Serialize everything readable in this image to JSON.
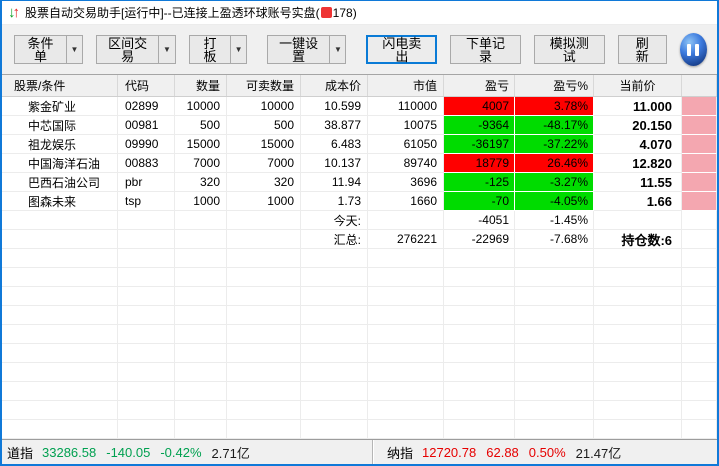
{
  "colors": {
    "accent": "#1079d8",
    "profit-bg": "#ff0000",
    "loss-bg": "#00dc00",
    "masked-bg": "#f4a7b0",
    "up-text": "#e60000",
    "down-text": "#00a050"
  },
  "window": {
    "title_prefix": "股票自动交易助手[运行中]--已连接上盈透环球账号实盘(",
    "title_suffix": "178)"
  },
  "toolbar": {
    "dropdowns": [
      {
        "label": "条件单"
      },
      {
        "label": "区间交易"
      },
      {
        "label": "打板"
      },
      {
        "label": "一键设置"
      }
    ],
    "flash_sell": "闪电卖出",
    "order_record": "下单记录",
    "sim_test": "模拟测试",
    "refresh": "刷新",
    "pause_icon": "pause-icon"
  },
  "table": {
    "columns": [
      "股票/条件",
      "代码",
      "数量",
      "可卖数量",
      "成本价",
      "市值",
      "盈亏",
      "盈亏%",
      "当前价",
      ""
    ],
    "column_keys": [
      "name",
      "code",
      "qty",
      "sellable-qty",
      "cost-price",
      "market-value",
      "pl",
      "pl-pct",
      "current-price"
    ],
    "rows": [
      {
        "cells": [
          "紫金矿业",
          "02899",
          "10000",
          "10000",
          "10.599",
          "110000",
          "4007",
          "3.78%",
          "11.000"
        ]
      },
      {
        "cells": [
          "中芯国际",
          "00981",
          "500",
          "500",
          "38.877",
          "10075",
          "-9364",
          "-48.17%",
          "20.150"
        ]
      },
      {
        "cells": [
          "祖龙娱乐",
          "09990",
          "15000",
          "15000",
          "6.483",
          "61050",
          "-36197",
          "-37.22%",
          "4.070"
        ]
      },
      {
        "cells": [
          "中国海洋石油",
          "00883",
          "7000",
          "7000",
          "10.137",
          "89740",
          "18779",
          "26.46%",
          "12.820"
        ]
      },
      {
        "cells": [
          "巴西石油公司",
          "pbr",
          "320",
          "320",
          "11.94",
          "3696",
          "-125",
          "-3.27%",
          "11.55"
        ]
      },
      {
        "cells": [
          "图森未来",
          "tsp",
          "1000",
          "1000",
          "1.73",
          "1660",
          "-70",
          "-4.05%",
          "1.66"
        ]
      }
    ],
    "summary_rows": [
      {
        "cells": [
          "",
          "",
          "",
          "",
          "今天:",
          "",
          "-4051",
          "-1.45%",
          ""
        ]
      },
      {
        "cells": [
          "",
          "",
          "",
          "",
          "汇总:",
          "276221",
          "-22969",
          "-7.68%",
          "持仓数:6"
        ]
      }
    ],
    "filler_row_count": 10
  },
  "statusbar": {
    "dow": {
      "label": "道指",
      "value": "33286.58",
      "change": "-140.05",
      "change_pct": "-0.42%",
      "turnover": "2.71亿"
    },
    "nasdaq": {
      "label": "纳指",
      "value": "12720.78",
      "change": "62.88",
      "change_pct": "0.50%",
      "turnover": "21.47亿"
    }
  }
}
